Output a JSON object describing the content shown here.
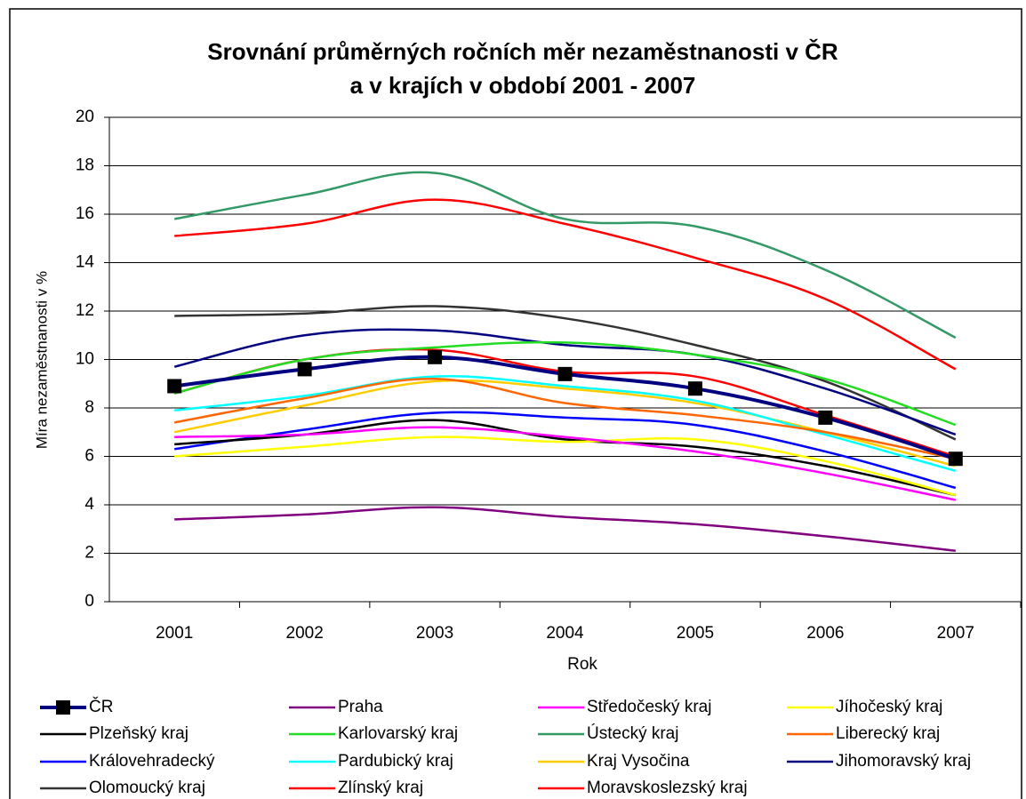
{
  "chart_data": {
    "type": "line",
    "title": [
      "Srovnání průměrných ročních měr nezaměstnanosti v ČR",
      "a v krajích v období 2001 - 2007"
    ],
    "x_label": "Rok",
    "y_label": "Míra nezaměstnanosti v %",
    "categories": [
      "2001",
      "2002",
      "2003",
      "2004",
      "2005",
      "2006",
      "2007"
    ],
    "ylim": [
      0,
      20
    ],
    "yticks": [
      0,
      2,
      4,
      6,
      8,
      10,
      12,
      14,
      16,
      18,
      20
    ],
    "grid": true,
    "series": [
      {
        "name": "ČR",
        "color": "#000080",
        "marker": "square",
        "values": [
          8.9,
          9.6,
          10.1,
          9.4,
          8.8,
          7.6,
          5.9
        ]
      },
      {
        "name": "Praha",
        "color": "#800080",
        "values": [
          3.4,
          3.6,
          3.9,
          3.5,
          3.2,
          2.7,
          2.1
        ]
      },
      {
        "name": "Středočeský kraj",
        "color": "#ff00ff",
        "values": [
          6.8,
          6.9,
          7.2,
          6.8,
          6.2,
          5.3,
          4.2
        ]
      },
      {
        "name": "Jíhočeský kraj",
        "color": "#ffff00",
        "values": [
          6.0,
          6.4,
          6.8,
          6.6,
          6.7,
          5.8,
          4.4
        ]
      },
      {
        "name": "Plzeňský kraj",
        "color": "#000000",
        "values": [
          6.5,
          6.9,
          7.5,
          6.7,
          6.4,
          5.6,
          4.4
        ]
      },
      {
        "name": "Karlovarský kraj",
        "color": "#22dd22",
        "values": [
          8.6,
          10.0,
          10.5,
          10.7,
          10.2,
          9.2,
          7.3
        ]
      },
      {
        "name": "Ústecký kraj",
        "color": "#339966",
        "values": [
          15.8,
          16.8,
          17.7,
          15.8,
          15.5,
          13.7,
          10.9
        ]
      },
      {
        "name": "Liberecký kraj",
        "color": "#ff6600",
        "values": [
          7.4,
          8.4,
          9.2,
          8.2,
          7.7,
          7.0,
          5.9
        ]
      },
      {
        "name": "Královehradecký",
        "color": "#0000ff",
        "values": [
          6.3,
          7.1,
          7.8,
          7.6,
          7.3,
          6.2,
          4.7
        ]
      },
      {
        "name": "Pardubický kraj",
        "color": "#00ffff",
        "values": [
          7.9,
          8.5,
          9.3,
          8.9,
          8.3,
          6.9,
          5.4
        ]
      },
      {
        "name": "Kraj Vysočina",
        "color": "#ffcc00",
        "values": [
          7.0,
          8.1,
          9.1,
          8.8,
          8.2,
          7.0,
          5.6
        ]
      },
      {
        "name": "Jihomoravský kraj",
        "color": "#000080",
        "values": [
          9.7,
          11.0,
          11.2,
          10.6,
          10.2,
          8.8,
          6.9
        ]
      },
      {
        "name": "Olomoucký kraj",
        "color": "#333333",
        "values": [
          11.8,
          11.9,
          12.2,
          11.7,
          10.6,
          9.1,
          6.7
        ]
      },
      {
        "name": "Zlínský kraj",
        "color": "#ff0000",
        "values": [
          8.6,
          10.0,
          10.4,
          9.5,
          9.3,
          7.7,
          6.0
        ]
      },
      {
        "name": "Moravskoslezský kraj",
        "color": "#ff0000",
        "values": [
          15.1,
          15.6,
          16.6,
          15.6,
          14.2,
          12.5,
          9.6
        ]
      }
    ]
  }
}
